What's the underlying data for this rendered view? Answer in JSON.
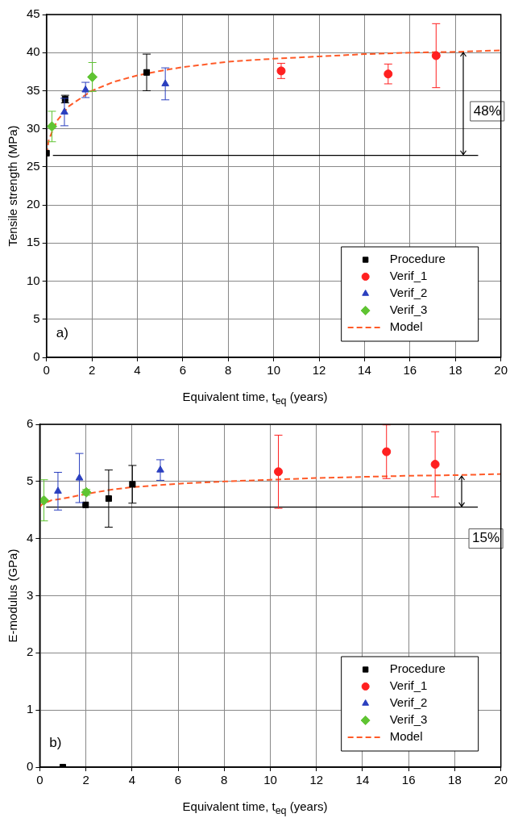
{
  "chart_data": [
    {
      "type": "scatter",
      "xlabel": "Equivalent time, t$_{eq}$ (years)",
      "ylabel": "Tensile strength (MPa)",
      "xlim": [
        0,
        20
      ],
      "xticks": [
        0,
        2,
        4,
        6,
        8,
        10,
        12,
        14,
        16,
        18,
        20
      ],
      "ylim": [
        0,
        45
      ],
      "yticks": [
        0,
        5,
        10,
        15,
        20,
        25,
        30,
        35,
        40,
        45
      ],
      "grid": true,
      "legend": "bottom right",
      "series": [
        {
          "name": "Procedure",
          "color": "#000000",
          "marker": "square",
          "x": [
            0,
            0.82,
            4.41
          ],
          "values": [
            26.8,
            33.9,
            37.4
          ],
          "errors": [
            null,
            0.5,
            2.4
          ]
        },
        {
          "name": "Verif_1",
          "color": "#ff2020",
          "marker": "circle",
          "x": [
            10.33,
            15.04,
            17.15
          ],
          "values": [
            37.6,
            37.2,
            39.6
          ],
          "errors": [
            1,
            1.3,
            4.2
          ]
        },
        {
          "name": "Verif_2",
          "color": "#2a3fbf",
          "marker": "triangle",
          "x": [
            0.79,
            1.72,
            5.23
          ],
          "values": [
            32.2,
            35.1,
            35.9
          ],
          "errors": [
            1.8,
            1,
            2.1
          ]
        },
        {
          "name": "Verif_3",
          "color": "#5fc432",
          "marker": "diamond",
          "x": [
            0.24,
            2.02
          ],
          "values": [
            30.3,
            36.8
          ],
          "errors": [
            2,
            1.9
          ]
        },
        {
          "name": "Model",
          "type": "line",
          "line_style": "dashed",
          "marker": "none",
          "color": "#ff5a28",
          "x": [
            0,
            0.1,
            0.3,
            0.5,
            1,
            2,
            3,
            4,
            5,
            6,
            8,
            10,
            12,
            14,
            16,
            18,
            20
          ],
          "values": [
            26.7,
            28.5,
            30,
            31.2,
            33,
            35,
            36.2,
            37,
            37.6,
            38.1,
            38.8,
            39.2,
            39.5,
            39.8,
            40,
            40.1,
            40.3
          ]
        }
      ],
      "ref_lines": [
        {
          "axis": "y",
          "value": 26.5,
          "color": "#000000"
        }
      ],
      "annotations": [
        "a)",
        {
          "text": "48%",
          "x": 19.4,
          "y": 32.3
        }
      ]
    },
    {
      "type": "scatter",
      "xlabel": "Equivalent time, t$_{eq}$ (years)",
      "ylabel": "E-modulus (GPa)",
      "xlim": [
        0,
        20
      ],
      "xticks": [
        0,
        2,
        4,
        6,
        8,
        10,
        12,
        14,
        16,
        18,
        20
      ],
      "ylim": [
        0,
        6
      ],
      "yticks": [
        0,
        1,
        2,
        3,
        4,
        5,
        6
      ],
      "grid": true,
      "legend": "bottom right",
      "series": [
        {
          "name": "Procedure",
          "color": "#000000",
          "marker": "square",
          "x": [
            1,
            1.99,
            2.99,
            4.02
          ],
          "values": [
            0,
            4.59,
            4.7,
            4.95
          ],
          "errors": [
            null,
            null,
            0.5,
            0.33
          ]
        },
        {
          "name": "Verif_1",
          "color": "#ff2020",
          "marker": "circle",
          "x": [
            10.35,
            15.04,
            17.15
          ],
          "values": [
            5.17,
            5.52,
            5.3
          ],
          "errors": [
            0.64,
            0.47,
            0.57
          ]
        },
        {
          "name": "Verif_2",
          "color": "#2a3fbf",
          "marker": "triangle",
          "x": [
            0.79,
            1.72,
            5.23
          ],
          "values": [
            4.83,
            5.06,
            5.2
          ],
          "errors": [
            0.33,
            0.43,
            0.18
          ]
        },
        {
          "name": "Verif_3",
          "color": "#5fc432",
          "marker": "diamond",
          "x": [
            0.18,
            2.02
          ],
          "values": [
            4.67,
            4.81
          ],
          "errors": [
            0.36,
            0.05
          ]
        },
        {
          "name": "Model",
          "type": "line",
          "line_style": "dashed",
          "marker": "none",
          "color": "#ff5a28",
          "x": [
            0,
            0.1,
            0.5,
            1,
            2,
            3,
            4,
            6,
            8,
            10,
            12,
            14,
            16,
            18,
            20
          ],
          "values": [
            4.55,
            4.6,
            4.67,
            4.7,
            4.78,
            4.85,
            4.9,
            4.96,
            5,
            5.03,
            5.06,
            5.08,
            5.1,
            5.11,
            5.13
          ]
        }
      ],
      "ref_lines": [
        {
          "axis": "y",
          "value": 4.55,
          "color": "#000000"
        }
      ],
      "annotations": [
        "b)",
        {
          "text": "15%",
          "x": 19.35,
          "y": 4.0
        }
      ]
    }
  ]
}
